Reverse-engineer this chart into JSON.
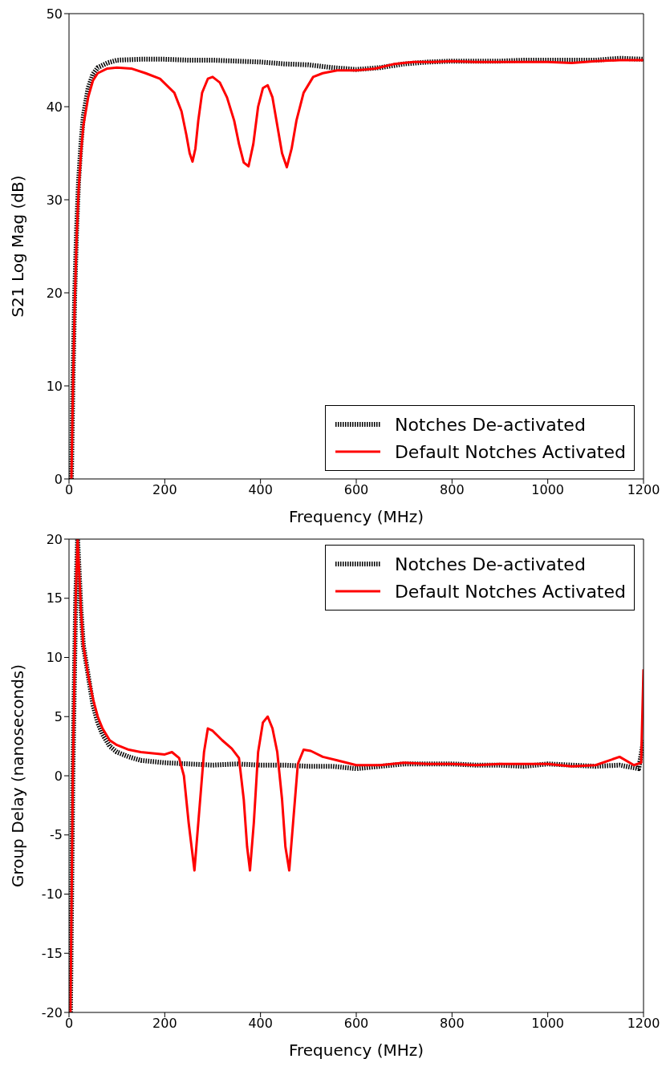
{
  "chart_data": [
    {
      "type": "line",
      "xlabel": "Frequency (MHz)",
      "ylabel": "S21 Log Mag (dB)",
      "xlim": [
        0,
        1200
      ],
      "ylim": [
        0,
        50
      ],
      "xticks": [
        0,
        200,
        400,
        600,
        800,
        1000,
        1200
      ],
      "yticks": [
        0,
        10,
        20,
        30,
        40,
        50
      ],
      "grid": false,
      "legend": "bottom right",
      "marker": "none",
      "series": [
        {
          "name": "Notches De-activated",
          "color": "#000000",
          "line_style": "dotted",
          "x": [
            5,
            8,
            12,
            16,
            20,
            25,
            30,
            40,
            50,
            60,
            80,
            100,
            150,
            200,
            250,
            300,
            350,
            400,
            450,
            500,
            550,
            600,
            650,
            700,
            750,
            800,
            850,
            900,
            950,
            1000,
            1050,
            1100,
            1150,
            1200
          ],
          "values": [
            0,
            10,
            20,
            27,
            32,
            36,
            39,
            42,
            43.5,
            44.2,
            44.7,
            45,
            45.1,
            45.1,
            45,
            45,
            44.9,
            44.8,
            44.6,
            44.5,
            44.2,
            44,
            44.2,
            44.6,
            44.8,
            44.9,
            44.9,
            44.9,
            45,
            45,
            45,
            45,
            45.2,
            45.1
          ]
        },
        {
          "name": "Default Notches Activated",
          "color": "#ff0000",
          "line_style": "solid",
          "x": [
            5,
            8,
            12,
            16,
            20,
            25,
            30,
            40,
            50,
            60,
            80,
            100,
            130,
            160,
            190,
            220,
            235,
            245,
            252,
            258,
            264,
            270,
            278,
            290,
            300,
            315,
            330,
            345,
            355,
            365,
            375,
            385,
            395,
            405,
            415,
            425,
            435,
            445,
            455,
            465,
            475,
            490,
            510,
            530,
            560,
            600,
            640,
            680,
            720,
            760,
            800,
            850,
            900,
            950,
            1000,
            1050,
            1100,
            1150,
            1200
          ],
          "values": [
            0,
            9,
            19,
            26,
            31,
            35,
            38,
            41,
            42.8,
            43.6,
            44.1,
            44.2,
            44.1,
            43.6,
            43,
            41.5,
            39.5,
            37,
            35,
            34.1,
            35.5,
            38.5,
            41.5,
            43,
            43.2,
            42.6,
            41,
            38.5,
            36,
            34,
            33.6,
            36,
            40,
            42,
            42.3,
            41,
            38,
            35,
            33.5,
            35.5,
            38.5,
            41.5,
            43.2,
            43.6,
            43.9,
            43.9,
            44.1,
            44.6,
            44.8,
            44.8,
            44.9,
            44.8,
            44.8,
            44.8,
            44.8,
            44.7,
            44.9,
            45,
            45
          ]
        }
      ]
    },
    {
      "type": "line",
      "xlabel": "Frequency (MHz)",
      "ylabel": "Group Delay (nanoseconds)",
      "xlim": [
        0,
        1200
      ],
      "ylim": [
        -20,
        20
      ],
      "xticks": [
        0,
        200,
        400,
        600,
        800,
        1000,
        1200
      ],
      "yticks": [
        -20,
        -15,
        -10,
        -5,
        0,
        5,
        10,
        15,
        20
      ],
      "grid": false,
      "legend": "top right",
      "marker": "none",
      "series": [
        {
          "name": "Notches De-activated",
          "color": "#000000",
          "line_style": "dotted",
          "x": [
            3,
            8,
            14,
            18,
            25,
            30,
            40,
            50,
            60,
            70,
            85,
            100,
            125,
            150,
            200,
            250,
            300,
            350,
            400,
            450,
            500,
            550,
            600,
            650,
            700,
            750,
            800,
            850,
            900,
            950,
            1000,
            1050,
            1100,
            1150,
            1190,
            1200
          ],
          "values": [
            -20,
            0,
            15,
            20,
            14,
            11,
            8.5,
            6,
            4.5,
            3.5,
            2.5,
            2,
            1.6,
            1.3,
            1.1,
            1,
            0.9,
            1,
            0.9,
            0.9,
            0.8,
            0.8,
            0.6,
            0.8,
            1,
            1,
            1,
            0.9,
            0.9,
            0.8,
            1,
            0.9,
            0.8,
            0.9,
            0.6,
            3
          ]
        },
        {
          "name": "Default Notches Activated",
          "color": "#ff0000",
          "line_style": "solid",
          "x": [
            3,
            8,
            14,
            18,
            25,
            30,
            40,
            50,
            60,
            70,
            85,
            100,
            125,
            150,
            200,
            215,
            230,
            240,
            250,
            262,
            272,
            282,
            290,
            300,
            320,
            340,
            355,
            365,
            372,
            378,
            386,
            395,
            405,
            415,
            425,
            435,
            445,
            452,
            460,
            468,
            478,
            490,
            505,
            530,
            560,
            600,
            650,
            700,
            750,
            800,
            850,
            900,
            950,
            1000,
            1050,
            1100,
            1150,
            1180,
            1195,
            1200
          ],
          "values": [
            -20,
            0,
            15,
            20,
            14,
            11,
            8.5,
            6.5,
            5,
            4,
            3,
            2.6,
            2.2,
            2,
            1.8,
            2,
            1.5,
            0,
            -4,
            -8,
            -3,
            2,
            4,
            3.8,
            3,
            2.3,
            1.5,
            -2,
            -6,
            -8,
            -4,
            2,
            4.5,
            5,
            4,
            2,
            -2,
            -6,
            -8,
            -4,
            1,
            2.2,
            2.1,
            1.6,
            1.3,
            0.9,
            0.9,
            1.1,
            1,
            1,
            0.9,
            1,
            1,
            1,
            0.8,
            0.9,
            1.6,
            0.9,
            1.1,
            9
          ]
        }
      ]
    }
  ]
}
